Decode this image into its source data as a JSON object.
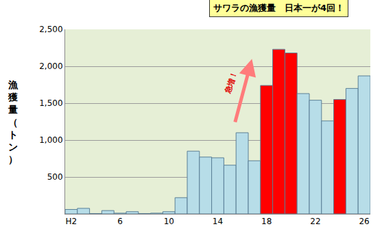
{
  "chart_data": {
    "type": "bar",
    "title": "サワラの漁獲量　日本一が4回！",
    "ylabel": "漁獲量（トン）",
    "categories": [
      "H2",
      null,
      null,
      null,
      "6",
      null,
      null,
      null,
      "10",
      null,
      null,
      null,
      "14",
      null,
      null,
      null,
      "18",
      null,
      null,
      null,
      "22",
      null,
      null,
      null,
      "26"
    ],
    "values": [
      60,
      75,
      5,
      45,
      10,
      30,
      5,
      10,
      30,
      220,
      850,
      770,
      760,
      660,
      1100,
      720,
      1740,
      2230,
      2180,
      1630,
      1540,
      1260,
      1550,
      1700,
      1870
    ],
    "colors": [
      "#b7dde8",
      "#b7dde8",
      "#b7dde8",
      "#b7dde8",
      "#b7dde8",
      "#b7dde8",
      "#b7dde8",
      "#b7dde8",
      "#b7dde8",
      "#b7dde8",
      "#b7dde8",
      "#b7dde8",
      "#b7dde8",
      "#b7dde8",
      "#b7dde8",
      "#b7dde8",
      "#ff0000",
      "#ff0000",
      "#ff0000",
      "#b7dde8",
      "#b7dde8",
      "#b7dde8",
      "#ff0000",
      "#b7dde8",
      "#b7dde8"
    ],
    "ylim": [
      0,
      2500
    ],
    "yticks": [
      500,
      {
        "value": 1000,
        "label": "1,000"
      },
      {
        "value": 1500,
        "label": "1,500"
      },
      {
        "value": 2000,
        "label": "2,000"
      },
      {
        "value": 2500,
        "label": "2,500"
      }
    ],
    "grid": true,
    "annotations": [
      "急増！"
    ]
  }
}
